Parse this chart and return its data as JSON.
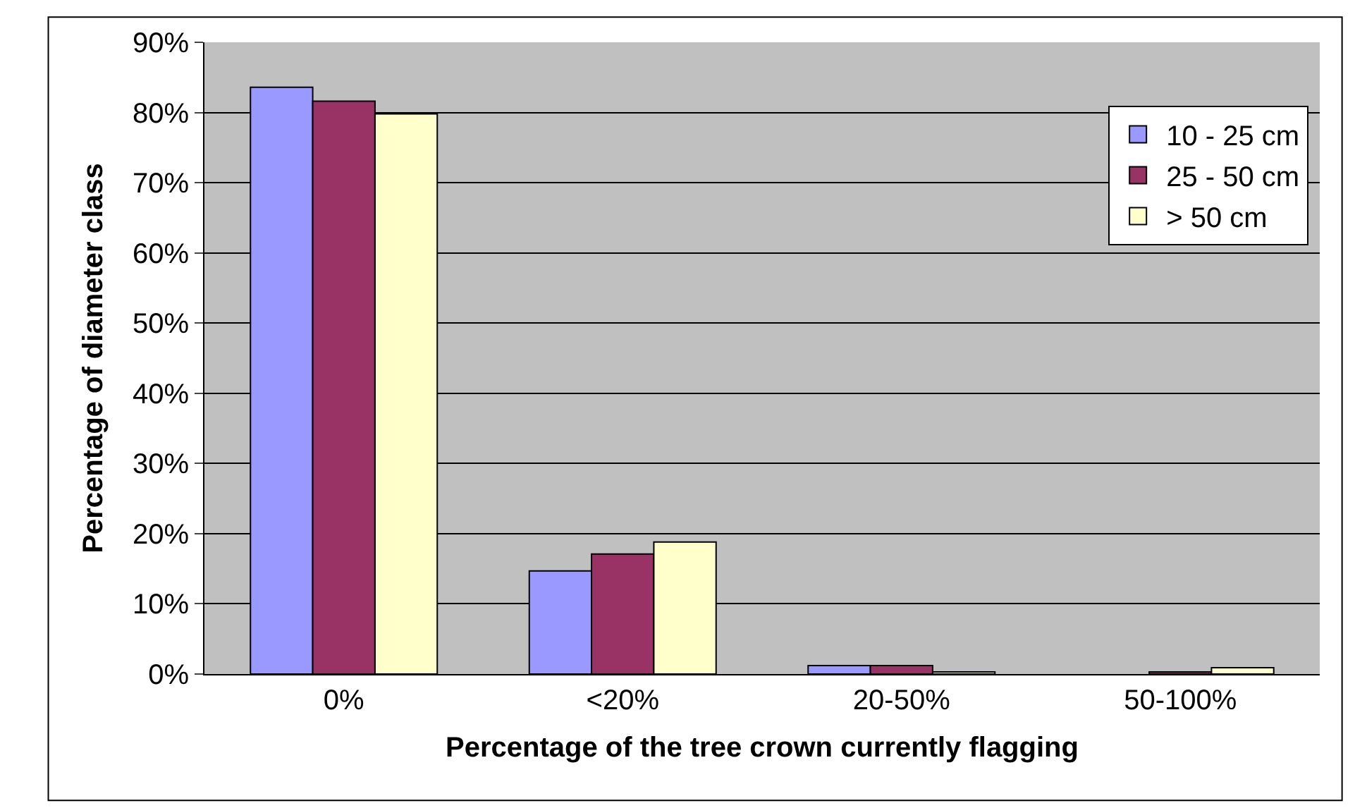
{
  "chart_data": {
    "type": "bar",
    "xlabel": "Percentage of the tree crown currently flagging",
    "ylabel": "Percentage of diameter class",
    "categories": [
      "0%",
      "<20%",
      "20-50%",
      "50-100%"
    ],
    "series": [
      {
        "name": "10 - 25 cm",
        "color": "#9999ff",
        "values": [
          83.6,
          14.7,
          1.2,
          0
        ]
      },
      {
        "name": "25 - 50 cm",
        "color": "#993366",
        "values": [
          81.6,
          17.1,
          1.2,
          0.3
        ]
      },
      {
        "name": "> 50 cm",
        "color": "#ffffcc",
        "values": [
          79.8,
          18.8,
          0.3,
          0.9
        ]
      }
    ],
    "ylim": [
      0,
      90
    ],
    "yticks": [
      {
        "value": 0,
        "label": "0%"
      },
      {
        "value": 10,
        "label": "10%"
      },
      {
        "value": 20,
        "label": "20%"
      },
      {
        "value": 30,
        "label": "30%"
      },
      {
        "value": 40,
        "label": "40%"
      },
      {
        "value": 50,
        "label": "50%"
      },
      {
        "value": 60,
        "label": "60%"
      },
      {
        "value": 70,
        "label": "70%"
      },
      {
        "value": 80,
        "label": "80%"
      },
      {
        "value": 90,
        "label": "90%"
      }
    ],
    "grid": "y",
    "legend": "top right"
  }
}
